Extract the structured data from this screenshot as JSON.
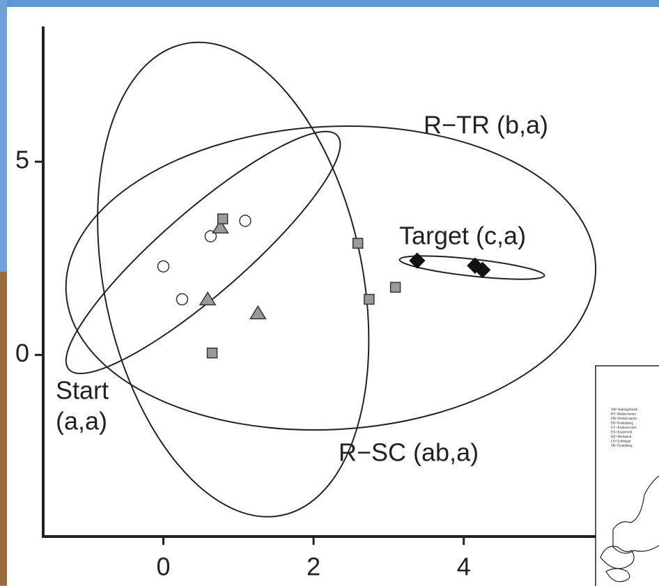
{
  "chart_data": {
    "type": "scatter",
    "xlim": [
      -1.6,
      6.6
    ],
    "ylim": [
      -4.7,
      8.5
    ],
    "xticks": [
      0,
      2,
      4
    ],
    "yticks": [
      0,
      5
    ],
    "series": [
      {
        "marker": "circle",
        "color": "#ffffff",
        "x": [
          0,
          0.25,
          0.63,
          1.09
        ],
        "values": [
          2.29,
          1.44,
          3.07,
          3.47
        ]
      },
      {
        "marker": "triangle",
        "color": "#9a9a9a",
        "x": [
          0.59,
          0.76,
          1.26
        ],
        "values": [
          1.44,
          3.3,
          1.08
        ]
      },
      {
        "marker": "square",
        "color": "#9a9a9a",
        "x": [
          0.79,
          0.65,
          2.59,
          2.74,
          3.09
        ],
        "values": [
          3.52,
          0.05,
          2.89,
          1.44,
          1.75
        ]
      },
      {
        "marker": "diamond",
        "color": "#111111",
        "x": [
          3.38,
          4.15,
          4.25
        ],
        "values": [
          2.44,
          2.31,
          2.2
        ]
      }
    ],
    "ellipses": [
      {
        "label": "R−SC (ab,a)",
        "center": [
          0.93,
          1.95
        ],
        "radii": [
          1.72,
          6.23
        ],
        "angle": -11.7
      },
      {
        "label": "R−TR (b,a)",
        "center": [
          2.23,
          1.99
        ],
        "radii": [
          3.53,
          3.92
        ],
        "angle": -3
      },
      {
        "label": "Start",
        "sublabel": "(a,a)",
        "center": [
          0.53,
          2.65
        ],
        "radii": [
          2.37,
          1.08
        ],
        "angle": -41
      },
      {
        "label": "Target (c,a)",
        "center": [
          4.11,
          2.26
        ],
        "radii": [
          0.97,
          0.22
        ],
        "angle": 6.3
      }
    ]
  },
  "inset": {
    "lines": [
      "AB=Aukingebroek",
      "BV=Bakkeveensv",
      "DB=Oeldelvaartm",
      "EB=Enamaberg",
      "EV=Ezelboerveld",
      "EX=Essterveld",
      "HZ=Hedsaand",
      "LO=Lobbegat",
      "TB=Tichelberg"
    ]
  }
}
